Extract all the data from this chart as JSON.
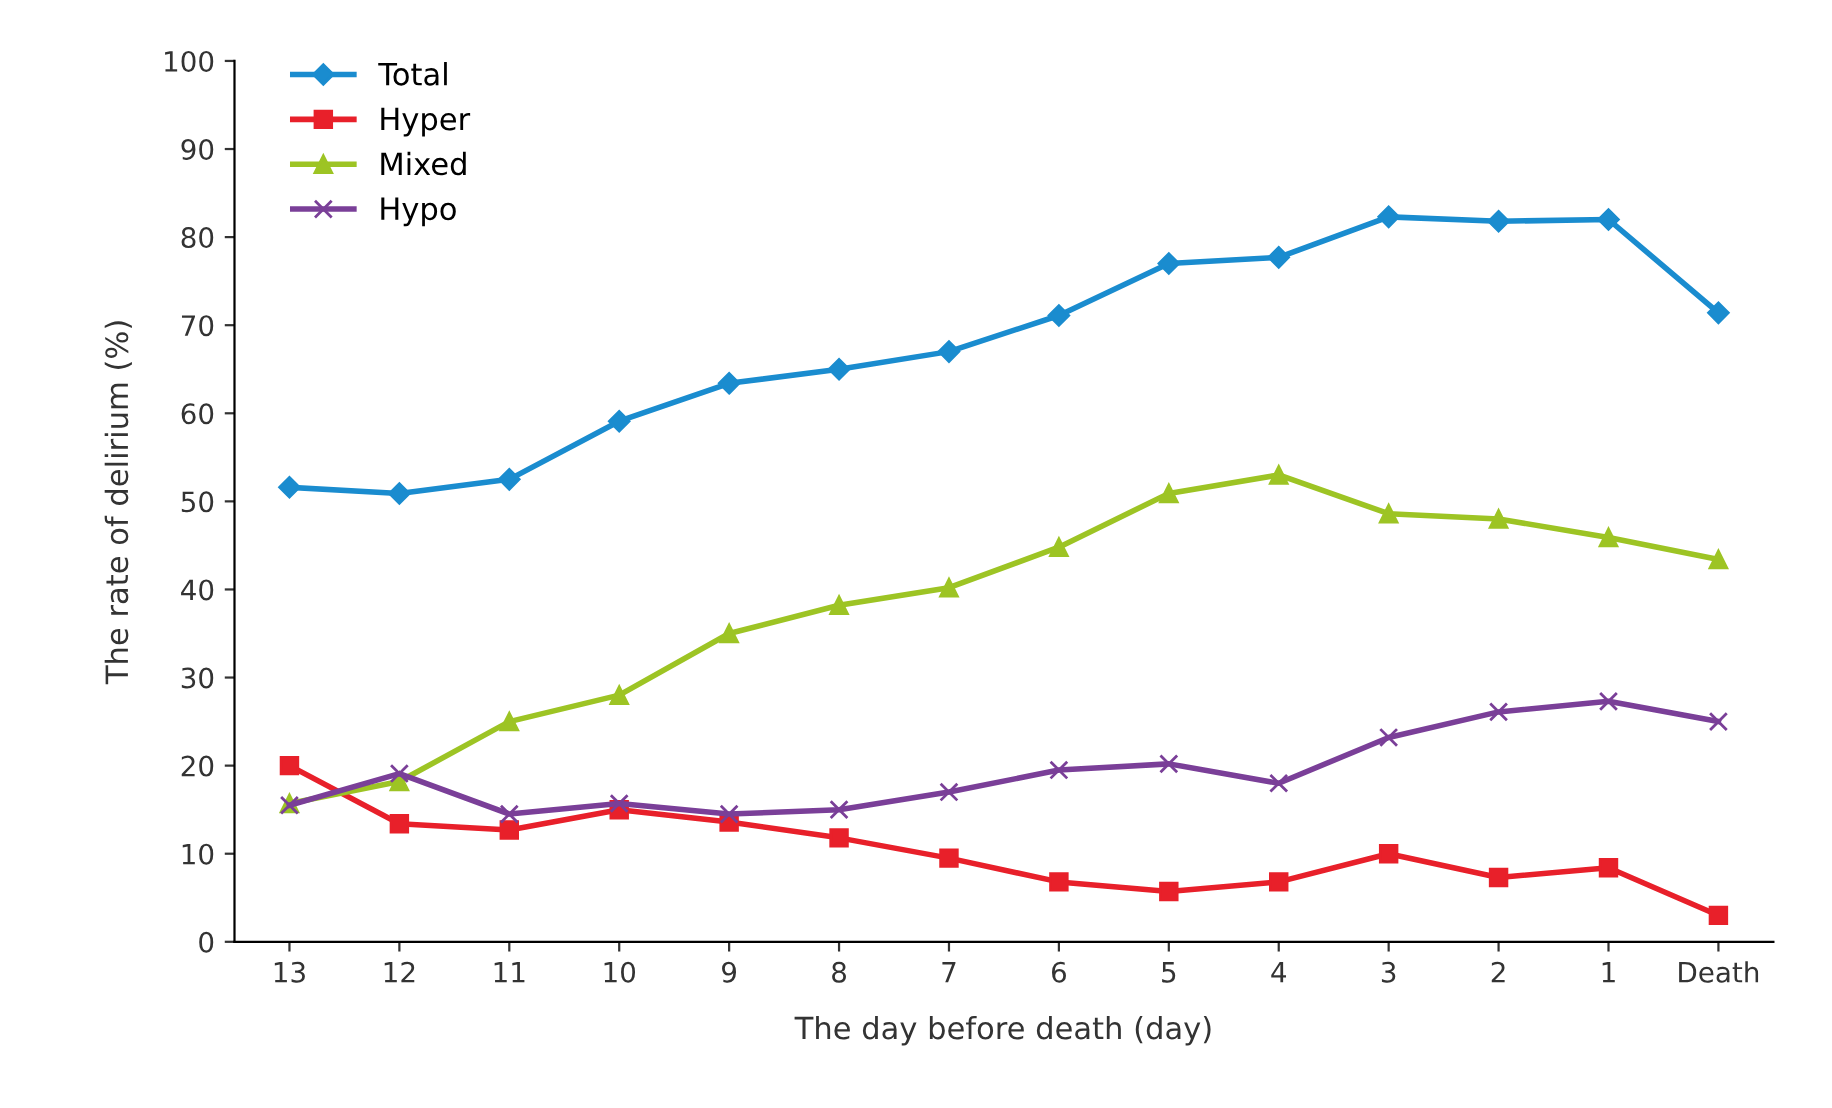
{
  "chart_data": {
    "type": "line",
    "xlabel": "The day before death (day)",
    "ylabel": "The rate of delirium (%)",
    "categories": [
      "13",
      "12",
      "11",
      "10",
      "9",
      "8",
      "7",
      "6",
      "5",
      "4",
      "3",
      "2",
      "1",
      "Death"
    ],
    "series": [
      {
        "name": "Total",
        "color": "#1a8ccf",
        "marker": "diamond",
        "values": [
          51.6,
          50.9,
          52.5,
          59.1,
          63.4,
          65.0,
          67.0,
          71.1,
          77.0,
          77.7,
          82.3,
          81.8,
          82.0,
          71.4
        ]
      },
      {
        "name": "Hyper",
        "color": "#e8202a",
        "marker": "square",
        "values": [
          20.0,
          13.4,
          12.7,
          15.0,
          13.6,
          11.8,
          9.5,
          6.8,
          5.7,
          6.8,
          10.0,
          7.3,
          8.4,
          3.0
        ]
      },
      {
        "name": "Mixed",
        "color": "#9dc424",
        "marker": "triangle",
        "values": [
          15.7,
          18.2,
          25.0,
          28.0,
          35.0,
          38.2,
          40.2,
          44.8,
          50.9,
          53.0,
          48.6,
          48.0,
          45.9,
          43.4
        ]
      },
      {
        "name": "Hypo",
        "color": "#7a3f98",
        "marker": "cross",
        "values": [
          15.5,
          19.1,
          14.5,
          15.7,
          14.5,
          15.0,
          17.0,
          19.5,
          20.2,
          18.0,
          23.2,
          26.1,
          27.3,
          25.0
        ]
      }
    ],
    "ylim": [
      0,
      100
    ],
    "yticks": [
      0,
      10,
      20,
      30,
      40,
      50,
      60,
      70,
      80,
      90,
      100
    ],
    "grid": false,
    "legend": "top left",
    "line_style": "solid"
  }
}
